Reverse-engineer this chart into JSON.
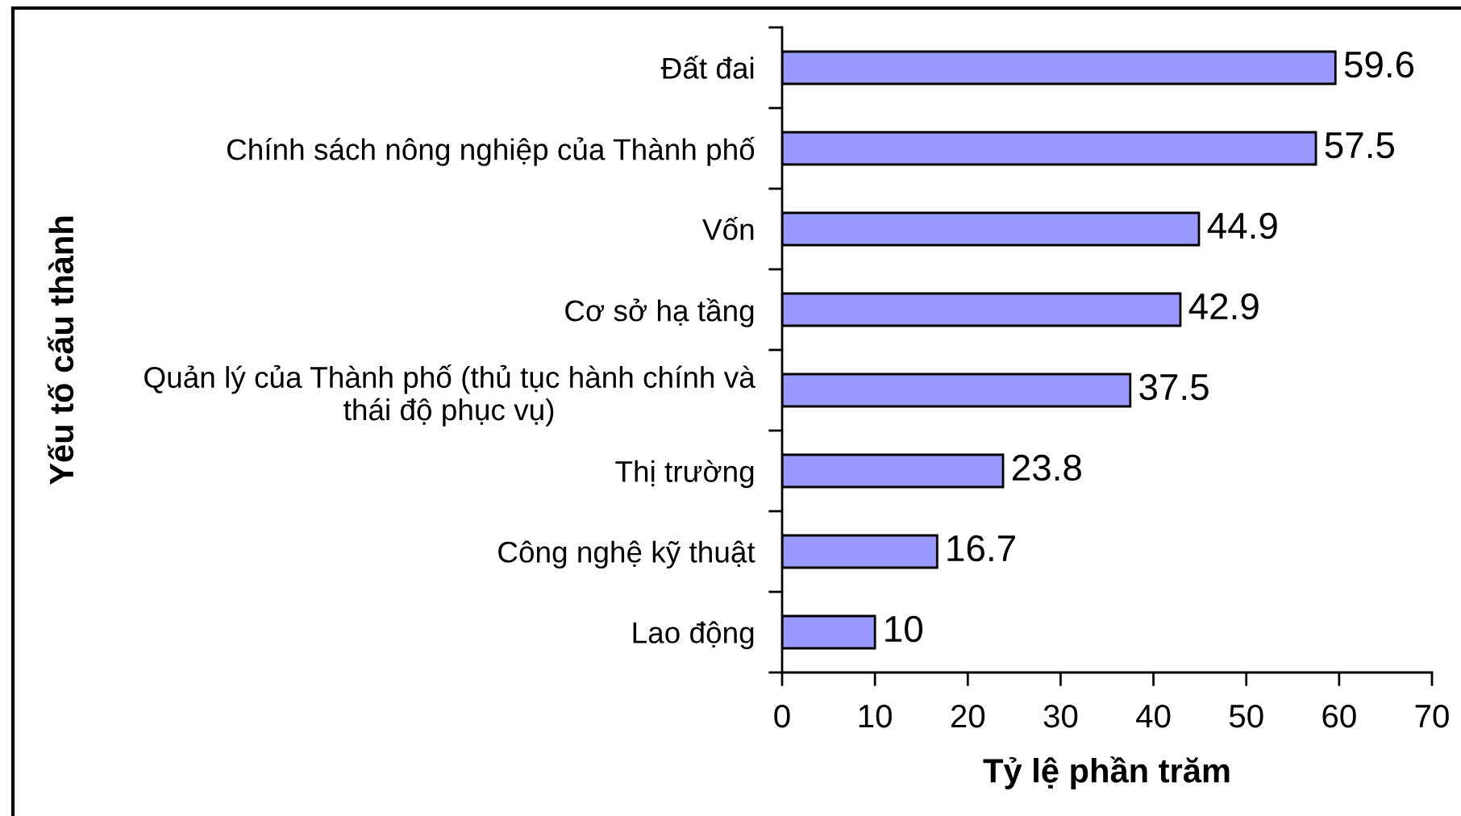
{
  "chart_data": {
    "type": "bar",
    "orientation": "horizontal",
    "xlabel": "Tỷ lệ phần trăm",
    "ylabel": "Yếu tố cấu thành",
    "categories": [
      "Đất đai",
      "Chính sách nông nghiệp của Thành phố",
      "Vốn",
      "Cơ sở hạ tầng",
      "Quản lý của Thành phố (thủ tục hành chính và thái độ phục vụ)",
      "Thị trường",
      "Công nghệ kỹ thuật",
      "Lao động"
    ],
    "values": [
      59.6,
      57.5,
      44.9,
      42.9,
      37.5,
      23.8,
      16.7,
      10
    ],
    "color": "#9999ff",
    "xlim": [
      0,
      70
    ],
    "xticks": [
      0,
      10,
      20,
      30,
      40,
      50,
      60,
      70
    ],
    "data_labels": true
  }
}
